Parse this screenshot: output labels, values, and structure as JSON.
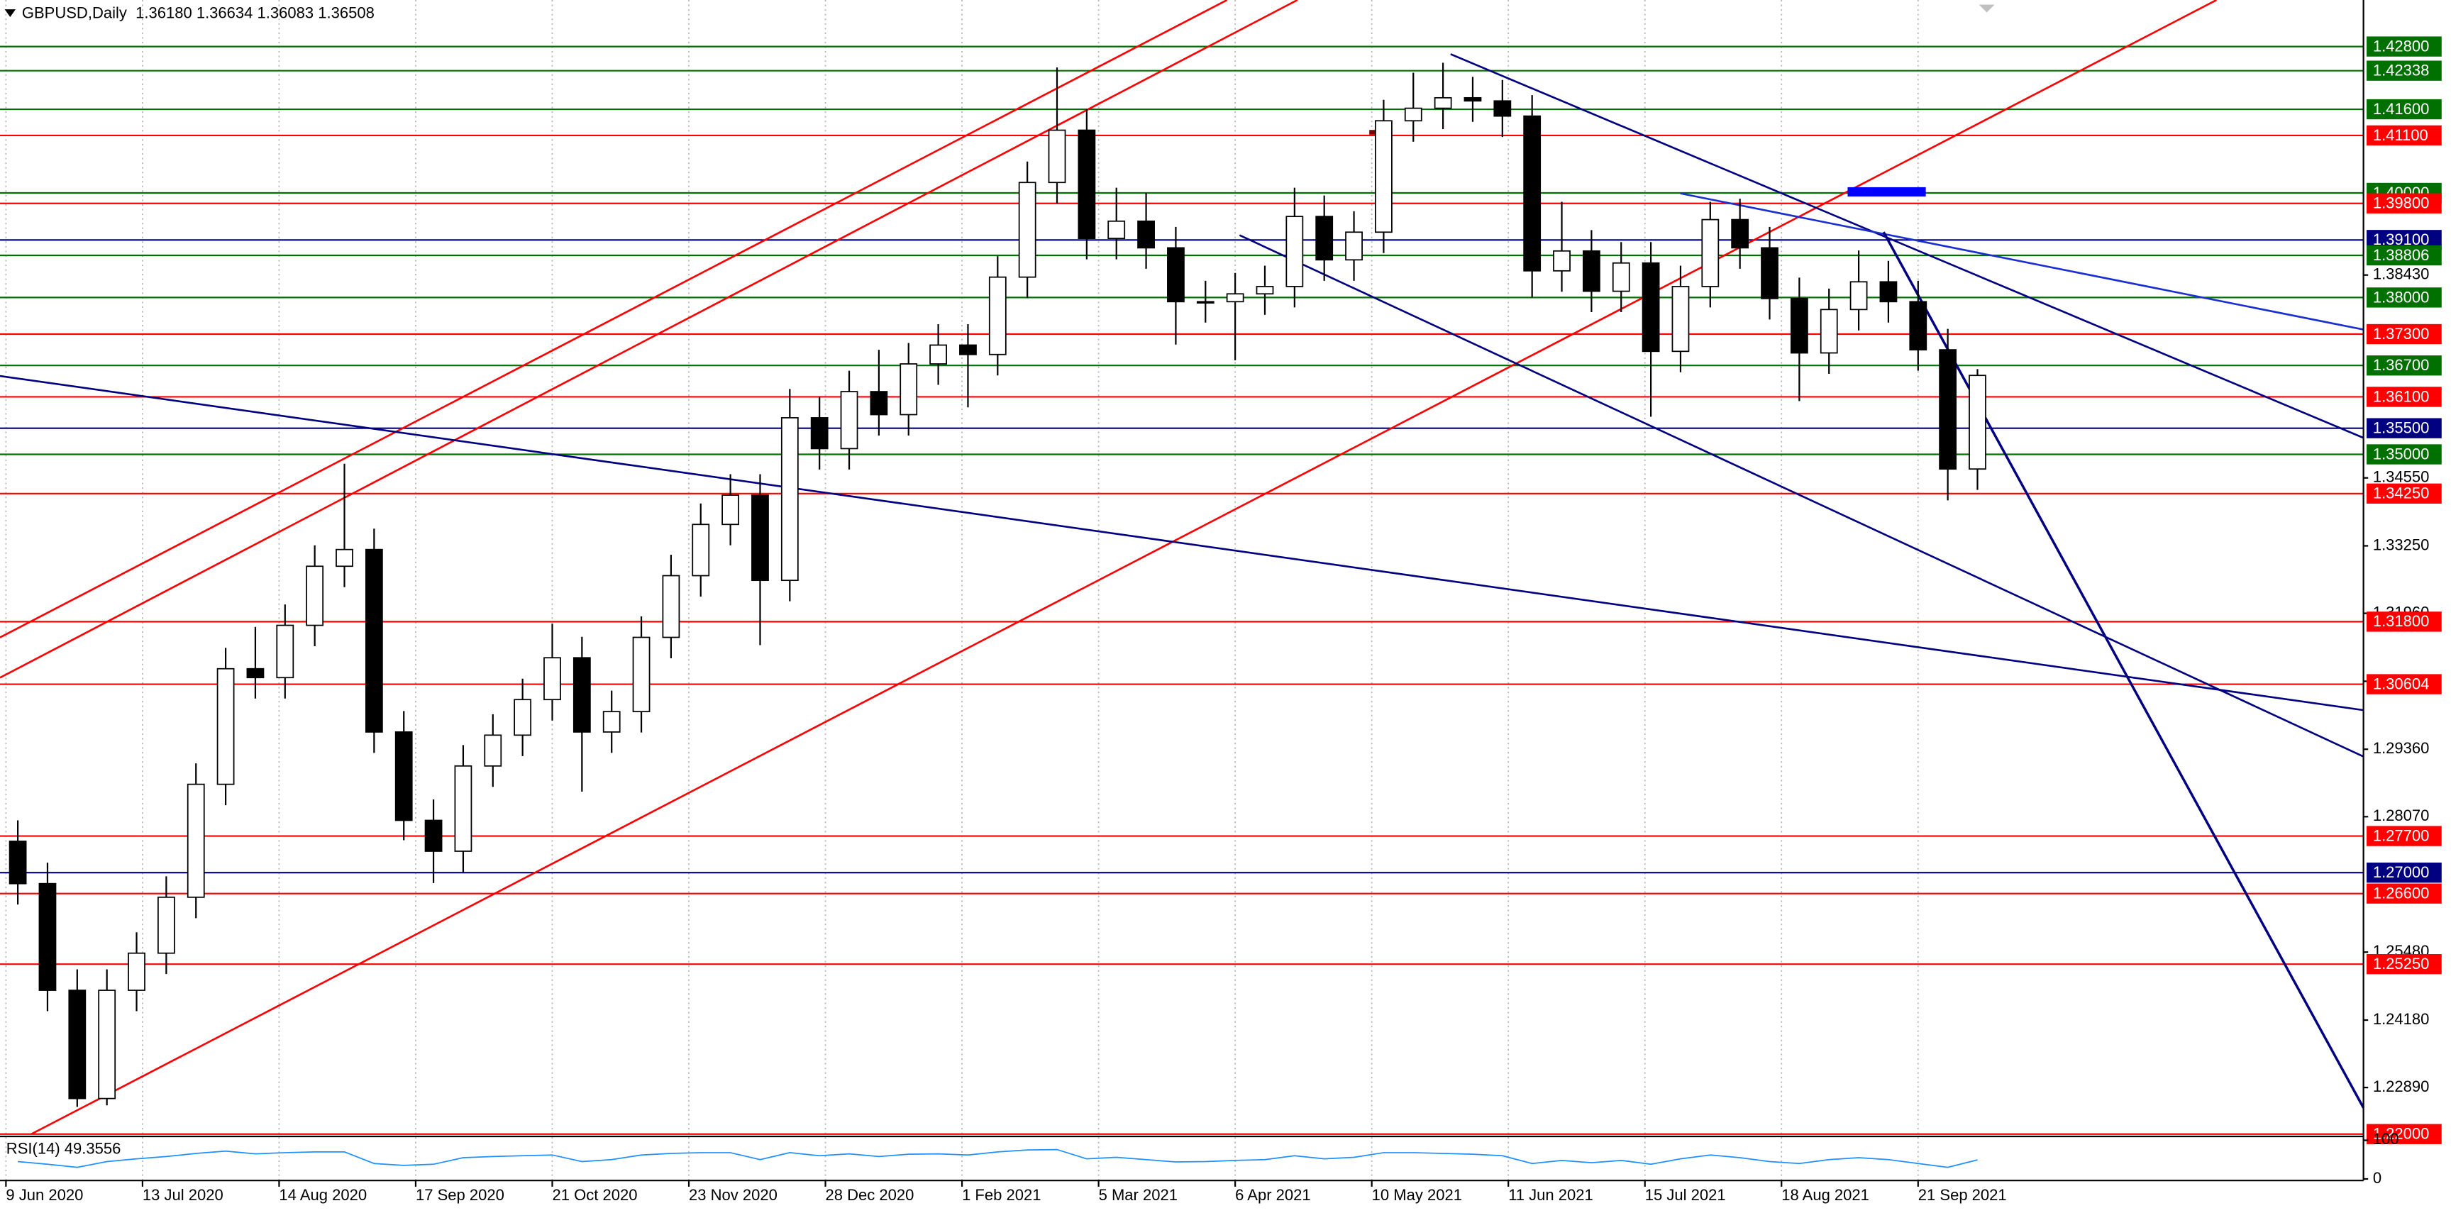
{
  "chart_data": {
    "type": "candlestick",
    "title": "GBPUSD,Daily  1.36180 1.36634 1.36083 1.36508",
    "x": [
      2,
      7,
      12,
      17,
      22,
      27,
      32,
      37,
      42,
      47,
      52,
      57,
      62,
      67,
      72,
      77,
      82,
      87,
      92,
      97,
      102,
      107,
      112,
      117,
      122,
      127,
      132,
      137,
      142,
      147,
      152,
      157,
      162,
      167,
      172,
      177,
      182,
      187,
      192,
      197,
      202,
      207,
      212,
      217,
      222,
      227,
      232,
      237,
      242,
      247,
      252,
      257,
      262,
      267,
      272,
      277,
      282,
      287,
      292,
      297,
      302,
      307,
      312,
      317,
      322,
      327,
      332
    ],
    "open": [
      1.276,
      1.2679,
      1.2475,
      1.2268,
      1.2475,
      1.2546,
      1.2653,
      1.2869,
      1.309,
      1.3073,
      1.3173,
      1.3286,
      1.3318,
      1.2969,
      1.28,
      1.2741,
      1.2904,
      1.2963,
      1.3031,
      1.3111,
      1.2969,
      1.3008,
      1.315,
      1.3268,
      1.3366,
      1.3422,
      1.3259,
      1.357,
      1.3511,
      1.362,
      1.3576,
      1.3673,
      1.3709,
      1.3691,
      1.3839,
      1.402,
      1.412,
      1.3913,
      1.3946,
      1.3895,
      1.3792,
      1.3792,
      1.3807,
      1.3821,
      1.3955,
      1.3872,
      1.3925,
      1.4138,
      1.4162,
      1.4182,
      1.4176,
      1.4147,
      1.3851,
      1.3889,
      1.3812,
      1.3866,
      1.3697,
      1.3821,
      1.3949,
      1.3895,
      1.3798,
      1.3694,
      1.3777,
      1.383,
      1.3792,
      1.37,
      1.3472
    ],
    "high": [
      1.28,
      1.2719,
      1.2515,
      1.2515,
      1.2586,
      1.2693,
      1.2909,
      1.313,
      1.317,
      1.3213,
      1.3326,
      1.3482,
      1.3358,
      1.3009,
      1.284,
      1.2944,
      1.3003,
      1.3071,
      1.3176,
      1.3151,
      1.3048,
      1.319,
      1.3308,
      1.3406,
      1.3462,
      1.3462,
      1.3625,
      1.361,
      1.366,
      1.37,
      1.3713,
      1.3749,
      1.3749,
      1.3879,
      1.406,
      1.424,
      1.416,
      1.401,
      1.4,
      1.3935,
      1.3832,
      1.3847,
      1.3861,
      1.401,
      1.3995,
      1.3965,
      1.4178,
      1.423,
      1.4249,
      1.4222,
      1.4216,
      1.4187,
      1.3983,
      1.3929,
      1.3906,
      1.3906,
      1.3861,
      1.3983,
      1.3989,
      1.3935,
      1.3838,
      1.3817,
      1.389,
      1.387,
      1.3832,
      1.374,
      1.3663
    ],
    "low": [
      1.2639,
      1.2435,
      1.2252,
      1.2255,
      1.2435,
      1.2506,
      1.2613,
      1.2829,
      1.3033,
      1.3033,
      1.3133,
      1.3246,
      1.2929,
      1.2762,
      1.268,
      1.2701,
      1.2864,
      1.2923,
      1.2991,
      1.2855,
      1.2929,
      1.2968,
      1.311,
      1.3228,
      1.3326,
      1.3135,
      1.3219,
      1.3471,
      1.3471,
      1.3536,
      1.3536,
      1.3633,
      1.359,
      1.3651,
      1.3799,
      1.398,
      1.3873,
      1.3873,
      1.3855,
      1.371,
      1.3752,
      1.368,
      1.3767,
      1.3781,
      1.3832,
      1.3832,
      1.3885,
      1.4098,
      1.4122,
      1.4136,
      1.4107,
      1.38,
      1.3811,
      1.3772,
      1.3772,
      1.3572,
      1.3657,
      1.3781,
      1.3855,
      1.3758,
      1.3602,
      1.3654,
      1.3737,
      1.3752,
      1.366,
      1.3412,
      1.3432
    ],
    "close": [
      1.2679,
      1.2475,
      1.2268,
      1.2475,
      1.2546,
      1.2653,
      1.2869,
      1.309,
      1.3073,
      1.3173,
      1.3286,
      1.3318,
      1.2969,
      1.28,
      1.2741,
      1.2904,
      1.2963,
      1.3031,
      1.3111,
      1.2969,
      1.3008,
      1.315,
      1.3268,
      1.3366,
      1.3422,
      1.3259,
      1.357,
      1.3511,
      1.362,
      1.3576,
      1.3673,
      1.3709,
      1.3691,
      1.3839,
      1.402,
      1.412,
      1.3913,
      1.3946,
      1.3895,
      1.3792,
      1.3792,
      1.3807,
      1.3821,
      1.3955,
      1.3872,
      1.3925,
      1.4138,
      1.4162,
      1.4182,
      1.4176,
      1.4147,
      1.3851,
      1.3889,
      1.3812,
      1.3866,
      1.3697,
      1.3821,
      1.3949,
      1.3895,
      1.3798,
      1.3694,
      1.3777,
      1.383,
      1.3792,
      1.37,
      1.3472,
      1.3651
    ],
    "up_color": "#ffffff",
    "down_color": "#000000",
    "xlim": [
      -1,
      397
    ],
    "ylim": [
      1.2197,
      1.4369
    ],
    "grid": true,
    "xticks": [
      {
        "value": 0,
        "label": "9 Jun 2020"
      },
      {
        "value": 23,
        "label": "13 Jul 2020"
      },
      {
        "value": 46,
        "label": "14 Aug 2020"
      },
      {
        "value": 69,
        "label": "17 Sep 2020"
      },
      {
        "value": 92,
        "label": "21 Oct 2020"
      },
      {
        "value": 115,
        "label": "23 Nov 2020"
      },
      {
        "value": 138,
        "label": "28 Dec 2020"
      },
      {
        "value": 161,
        "label": "1 Feb 2021"
      },
      {
        "value": 184,
        "label": "5 Mar 2021"
      },
      {
        "value": 207,
        "label": "6 Apr 2021"
      },
      {
        "value": 230,
        "label": "10 May 2021"
      },
      {
        "value": 253,
        "label": "11 Jun 2021"
      },
      {
        "value": 276,
        "label": "15 Jul 2021"
      },
      {
        "value": 299,
        "label": "18 Aug 2021"
      },
      {
        "value": 322,
        "label": "21 Sep 2021"
      }
    ],
    "yticks": [
      {
        "value": 1.3843,
        "label": "1.38430"
      },
      {
        "value": 1.3455,
        "label": "1.34550"
      },
      {
        "value": 1.3325,
        "label": "1.33250"
      },
      {
        "value": 1.3196,
        "label": "1.31960"
      },
      {
        "value": 1.3066,
        "label": "1.30660"
      },
      {
        "value": 1.2936,
        "label": "1.29360"
      },
      {
        "value": 1.2807,
        "label": "1.28070"
      },
      {
        "value": 1.2548,
        "label": "1.25480"
      },
      {
        "value": 1.2418,
        "label": "1.24180"
      },
      {
        "value": 1.2289,
        "label": "1.22890"
      }
    ],
    "levels": [
      {
        "value": 1.428,
        "label": "1.42800",
        "color": "#007000"
      },
      {
        "value": 1.42338,
        "label": "1.42338",
        "color": "#007000"
      },
      {
        "value": 1.416,
        "label": "1.41600",
        "color": "#007000"
      },
      {
        "value": 1.411,
        "label": "1.41100",
        "color": "#ff0000"
      },
      {
        "value": 1.4,
        "label": "1.40000",
        "color": "#007000"
      },
      {
        "value": 1.398,
        "label": "1.39800",
        "color": "#ff0000"
      },
      {
        "value": 1.391,
        "label": "1.39100",
        "color": "#000080"
      },
      {
        "value": 1.38806,
        "label": "1.38806",
        "color": "#007000"
      },
      {
        "value": 1.38,
        "label": "1.38000",
        "color": "#007000"
      },
      {
        "value": 1.373,
        "label": "1.37300",
        "color": "#ff0000"
      },
      {
        "value": 1.367,
        "label": "1.36700",
        "color": "#007000"
      },
      {
        "value": 1.361,
        "label": "1.36100",
        "color": "#ff0000"
      },
      {
        "value": 1.355,
        "label": "1.35500",
        "color": "#000080"
      },
      {
        "value": 1.35,
        "label": "1.35000",
        "color": "#007000"
      },
      {
        "value": 1.3425,
        "label": "1.34250",
        "color": "#ff0000"
      },
      {
        "value": 1.318,
        "label": "1.31800",
        "color": "#ff0000"
      },
      {
        "value": 1.30604,
        "label": "1.30604",
        "color": "#ff0000"
      },
      {
        "value": 1.277,
        "label": "1.27700",
        "color": "#ff0000"
      },
      {
        "value": 1.27,
        "label": "1.27000",
        "color": "#000080"
      },
      {
        "value": 1.266,
        "label": "1.26600",
        "color": "#ff0000"
      },
      {
        "value": 1.2525,
        "label": "1.25250",
        "color": "#ff0000"
      },
      {
        "value": 1.22,
        "label": "1.22000",
        "color": "#ff0000"
      }
    ],
    "rsi": {
      "label": "RSI(14) 49.3556",
      "color": "#1e90ff",
      "ylim": [
        0,
        100
      ],
      "yticks": [
        100,
        0
      ],
      "values": [
        45,
        38,
        30,
        45,
        52,
        58,
        66,
        72,
        65,
        68,
        70,
        70,
        40,
        35,
        38,
        55,
        58,
        60,
        62,
        45,
        50,
        62,
        66,
        68,
        68,
        50,
        68,
        60,
        65,
        58,
        64,
        65,
        62,
        70,
        75,
        76,
        52,
        56,
        50,
        44,
        45,
        48,
        50,
        60,
        52,
        56,
        68,
        68,
        66,
        64,
        60,
        40,
        48,
        42,
        48,
        38,
        52,
        62,
        55,
        45,
        40,
        50,
        55,
        50,
        40,
        30,
        49.3556
      ]
    }
  }
}
